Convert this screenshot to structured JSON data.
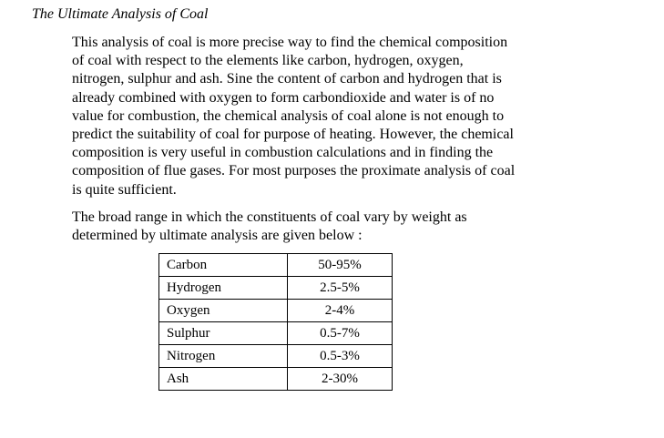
{
  "document": {
    "heading": "The Ultimate Analysis of Coal",
    "paragraph1_lines": [
      "This analysis of coal is more precise way to find the chemical composition",
      "of coal with respect to the elements like carbon, hydrogen, oxygen,",
      "nitrogen, sulphur and ash. Sine the content of carbon and hydrogen that is",
      "already combined with oxygen to form carbondioxide and water is of no",
      "value for combustion, the chemical analysis of coal alone is not enough to",
      "predict the suitability of coal for purpose of heating. However, the chemical",
      "composition is very useful in combustion calculations and in finding the",
      "composition of flue gases. For most purposes the proximate analysis of coal",
      "is quite sufficient."
    ],
    "paragraph2_lines": [
      "The broad range in which the constituents of coal vary by weight as",
      "determined by ultimate analysis are given below :"
    ],
    "table": {
      "rows": [
        {
          "constituent": "Carbon",
          "range": "50-95%"
        },
        {
          "constituent": "Hydrogen",
          "range": "2.5-5%"
        },
        {
          "constituent": "Oxygen",
          "range": "2-4%"
        },
        {
          "constituent": "Sulphur",
          "range": "0.5-7%"
        },
        {
          "constituent": "Nitrogen",
          "range": "0.5-3%"
        },
        {
          "constituent": "Ash",
          "range": "2-30%"
        }
      ]
    }
  }
}
